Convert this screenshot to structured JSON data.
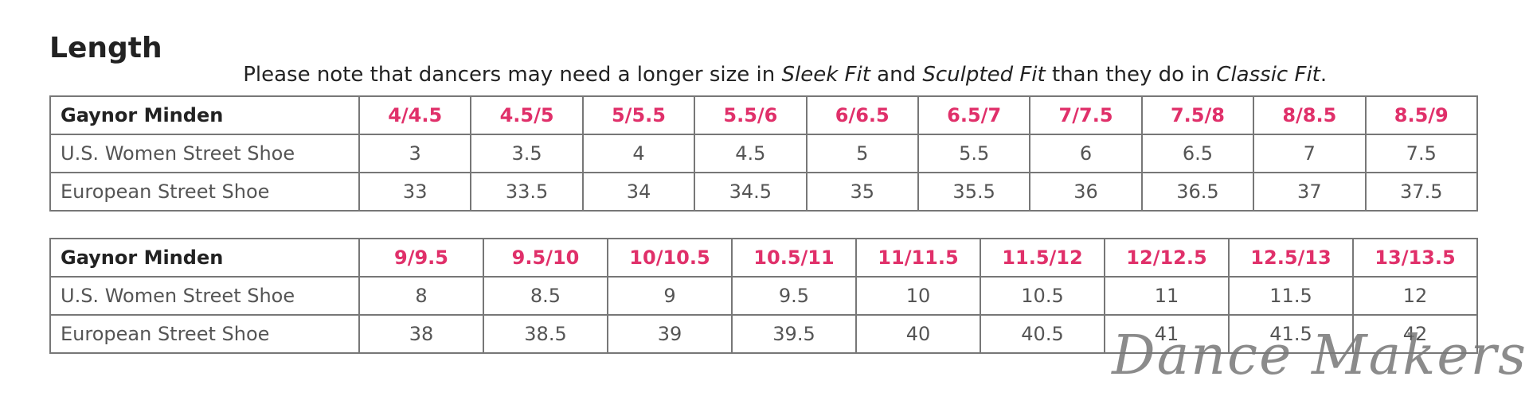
{
  "header": {
    "title": "Length",
    "note": [
      "Please note that dancers may need a longer size in ",
      "Sleek Fit",
      " and ",
      "Sculpted Fit",
      " than they do in ",
      "Classic Fit",
      "."
    ]
  },
  "tables": [
    {
      "header": [
        "Gaynor Minden",
        "4/4.5",
        "4.5/5",
        "5/5.5",
        "5.5/6",
        "6/6.5",
        "6.5/7",
        "7/7.5",
        "7.5/8",
        "8/8.5",
        "8.5/9"
      ],
      "rows": [
        [
          "U.S. Women Street Shoe",
          "3",
          "3.5",
          "4",
          "4.5",
          "5",
          "5.5",
          "6",
          "6.5",
          "7",
          "7.5"
        ],
        [
          "European Street Shoe",
          "33",
          "33.5",
          "34",
          "34.5",
          "35",
          "35.5",
          "36",
          "36.5",
          "37",
          "37.5"
        ]
      ]
    },
    {
      "header": [
        "Gaynor Minden",
        "9/9.5",
        "9.5/10",
        "10/10.5",
        "10.5/11",
        "11/11.5",
        "11.5/12",
        "12/12.5",
        "12.5/13",
        "13/13.5"
      ],
      "rows": [
        [
          "U.S. Women Street Shoe",
          "8",
          "8.5",
          "9",
          "9.5",
          "10",
          "10.5",
          "11",
          "11.5",
          "12"
        ],
        [
          "European Street Shoe",
          "38",
          "38.5",
          "39",
          "39.5",
          "40",
          "40.5",
          "41",
          "41.5",
          "42"
        ]
      ]
    }
  ],
  "watermark": "Dance Makers"
}
